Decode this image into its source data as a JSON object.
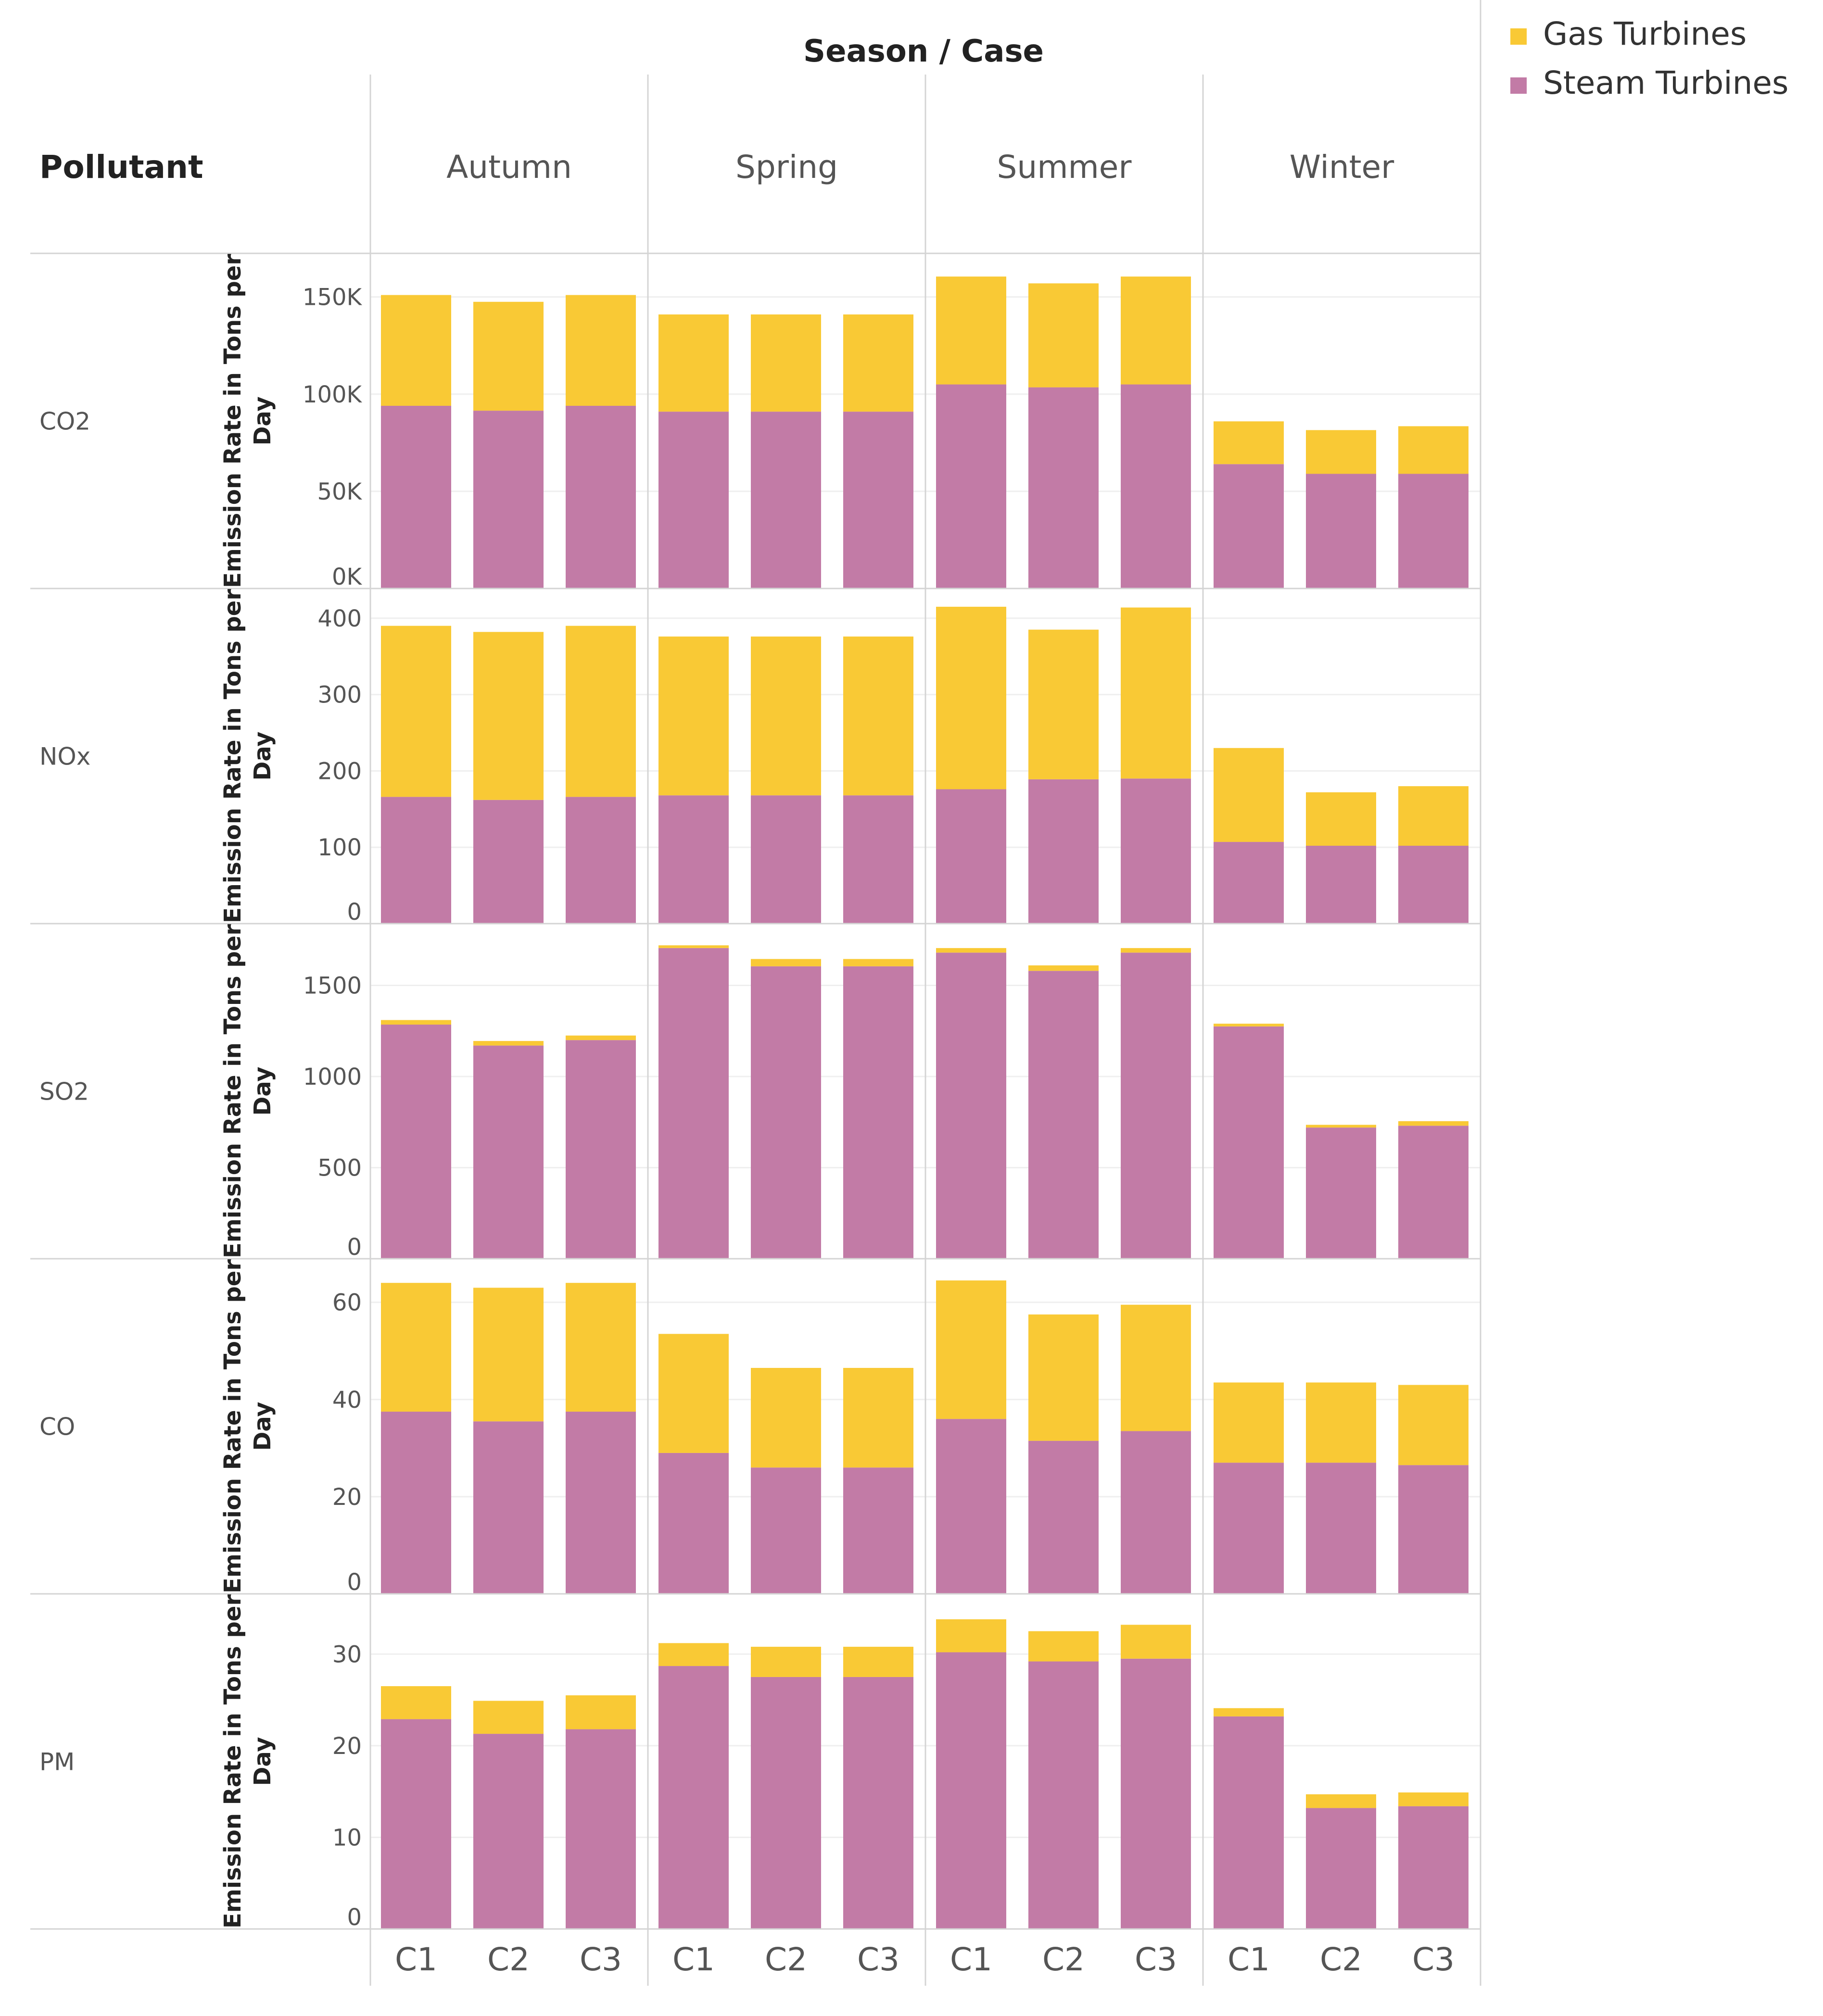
{
  "chart_data": {
    "type": "bar",
    "stacked": true,
    "title": "Season / Case",
    "row_header": "Pollutant",
    "ylabel_lines": [
      "Emission Rate in Tons per",
      "Day"
    ],
    "seasons": [
      "Autumn",
      "Spring",
      "Summer",
      "Winter"
    ],
    "cases": [
      "C1",
      "C2",
      "C3"
    ],
    "legend": [
      {
        "name": "Gas Turbines",
        "color": "#F9C935"
      },
      {
        "name": "Steam Turbines",
        "color": "#C27BA6"
      }
    ],
    "rows": [
      {
        "pollutant": "CO2",
        "ylim": [
          0,
          165000
        ],
        "ticks": [
          {
            "v": 0,
            "label": "0K"
          },
          {
            "v": 50000,
            "label": "50K"
          },
          {
            "v": 100000,
            "label": "100K"
          },
          {
            "v": 150000,
            "label": "150K"
          }
        ],
        "series": [
          {
            "name": "Steam Turbines",
            "values": [
              94000,
              91500,
              94000,
              91000,
              91000,
              91000,
              105000,
              103500,
              105000,
              64000,
              59000,
              59000
            ]
          },
          {
            "name": "Gas Turbines",
            "values": [
              57000,
              56000,
              57000,
              50000,
              50000,
              50000,
              55500,
              53500,
              55500,
              22000,
              22500,
              24500
            ]
          }
        ]
      },
      {
        "pollutant": "NOx",
        "ylim": [
          0,
          420
        ],
        "ticks": [
          {
            "v": 0,
            "label": "0"
          },
          {
            "v": 100,
            "label": "100"
          },
          {
            "v": 200,
            "label": "200"
          },
          {
            "v": 300,
            "label": "300"
          },
          {
            "v": 400,
            "label": "400"
          }
        ],
        "series": [
          {
            "name": "Steam Turbines",
            "values": [
              166,
              162,
              166,
              168,
              168,
              168,
              176,
              189,
              190,
              107,
              102,
              102
            ]
          },
          {
            "name": "Gas Turbines",
            "values": [
              224,
              220,
              224,
              208,
              208,
              208,
              239,
              196,
              224,
              123,
              70,
              78
            ]
          }
        ]
      },
      {
        "pollutant": "SO2",
        "ylim": [
          0,
          1760
        ],
        "ticks": [
          {
            "v": 0,
            "label": "0"
          },
          {
            "v": 500,
            "label": "500"
          },
          {
            "v": 1000,
            "label": "1000"
          },
          {
            "v": 1500,
            "label": "1500"
          }
        ],
        "series": [
          {
            "name": "Steam Turbines",
            "values": [
              1285,
              1170,
              1200,
              1705,
              1605,
              1605,
              1680,
              1580,
              1680,
              1275,
              720,
              730
            ]
          },
          {
            "name": "Gas Turbines",
            "values": [
              25,
              25,
              25,
              15,
              40,
              40,
              25,
              30,
              25,
              15,
              15,
              25
            ]
          }
        ]
      },
      {
        "pollutant": "CO",
        "ylim": [
          0,
          66
        ],
        "ticks": [
          {
            "v": 0,
            "label": "0"
          },
          {
            "v": 20,
            "label": "20"
          },
          {
            "v": 40,
            "label": "40"
          },
          {
            "v": 60,
            "label": "60"
          }
        ],
        "series": [
          {
            "name": "Steam Turbines",
            "values": [
              37.5,
              35.5,
              37.5,
              29,
              26,
              26,
              36,
              31.5,
              33.5,
              27,
              27,
              26.5
            ]
          },
          {
            "name": "Gas Turbines",
            "values": [
              26.5,
              27.5,
              26.5,
              24.5,
              20.5,
              20.5,
              28.5,
              26,
              26,
              16.5,
              16.5,
              16.5
            ]
          }
        ]
      },
      {
        "pollutant": "PM",
        "ylim": [
          0,
          35
        ],
        "ticks": [
          {
            "v": 0,
            "label": "0"
          },
          {
            "v": 10,
            "label": "10"
          },
          {
            "v": 20,
            "label": "20"
          },
          {
            "v": 30,
            "label": "30"
          }
        ],
        "series": [
          {
            "name": "Steam Turbines",
            "values": [
              22.9,
              21.3,
              21.8,
              28.7,
              27.5,
              27.5,
              30.2,
              29.2,
              29.5,
              23.2,
              13.2,
              13.4
            ]
          },
          {
            "name": "Gas Turbines",
            "values": [
              3.6,
              3.6,
              3.7,
              2.5,
              3.3,
              3.3,
              3.6,
              3.3,
              3.7,
              0.9,
              1.5,
              1.5
            ]
          }
        ]
      }
    ]
  }
}
